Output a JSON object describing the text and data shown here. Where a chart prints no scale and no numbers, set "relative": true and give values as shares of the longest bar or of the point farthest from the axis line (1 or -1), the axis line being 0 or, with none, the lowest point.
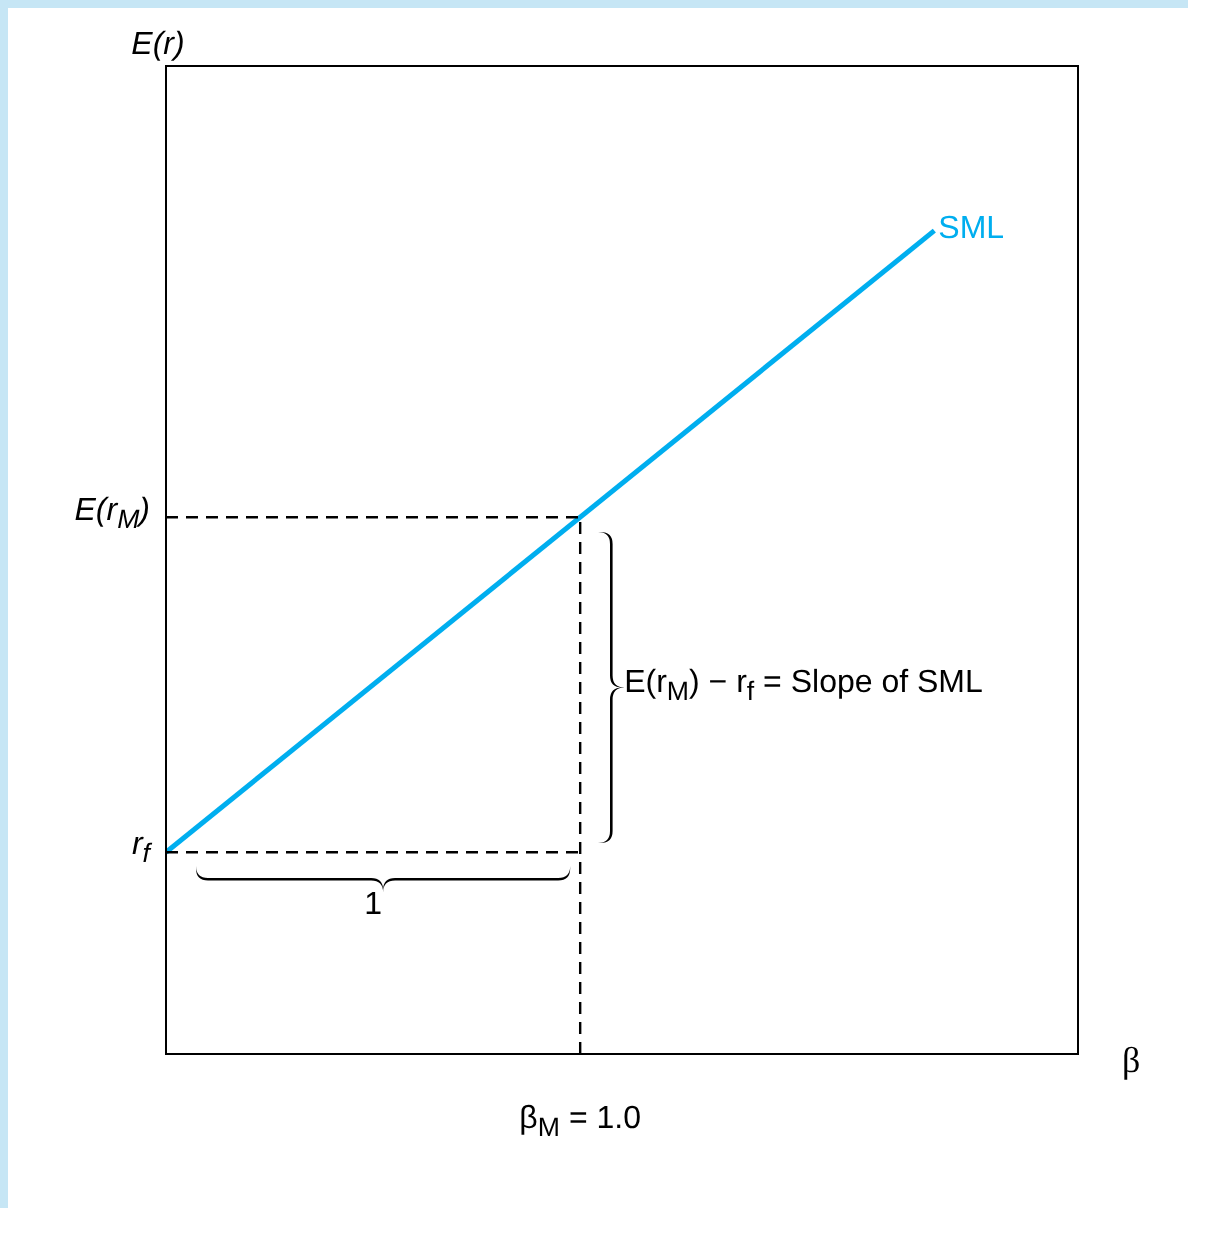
{
  "chart_data": {
    "type": "line",
    "xlabel": "β",
    "relative": true,
    "legend": false,
    "marker": "none",
    "categories": [
      null,
      null
    ],
    "series": [
      {
        "name": "SML",
        "color": "#00aeef",
        "values": [
          0.245,
          1
        ],
        "line_style": "solid"
      }
    ],
    "ref_lines": [
      {
        "axis": "y",
        "value": 0.652,
        "label": "E(r$_{M}$)",
        "color": "#000000",
        "line_style": "dashed"
      },
      {
        "axis": "y",
        "value": 0.245,
        "label": "r$_{f}$",
        "color": "#000000",
        "line_style": "dashed"
      }
    ],
    "annotations": [
      "1",
      "E(r$_{M}$) − r$_{f}$ = Slope of SML",
      "β$_{M}$ = 1.0",
      "E(r)"
    ]
  }
}
